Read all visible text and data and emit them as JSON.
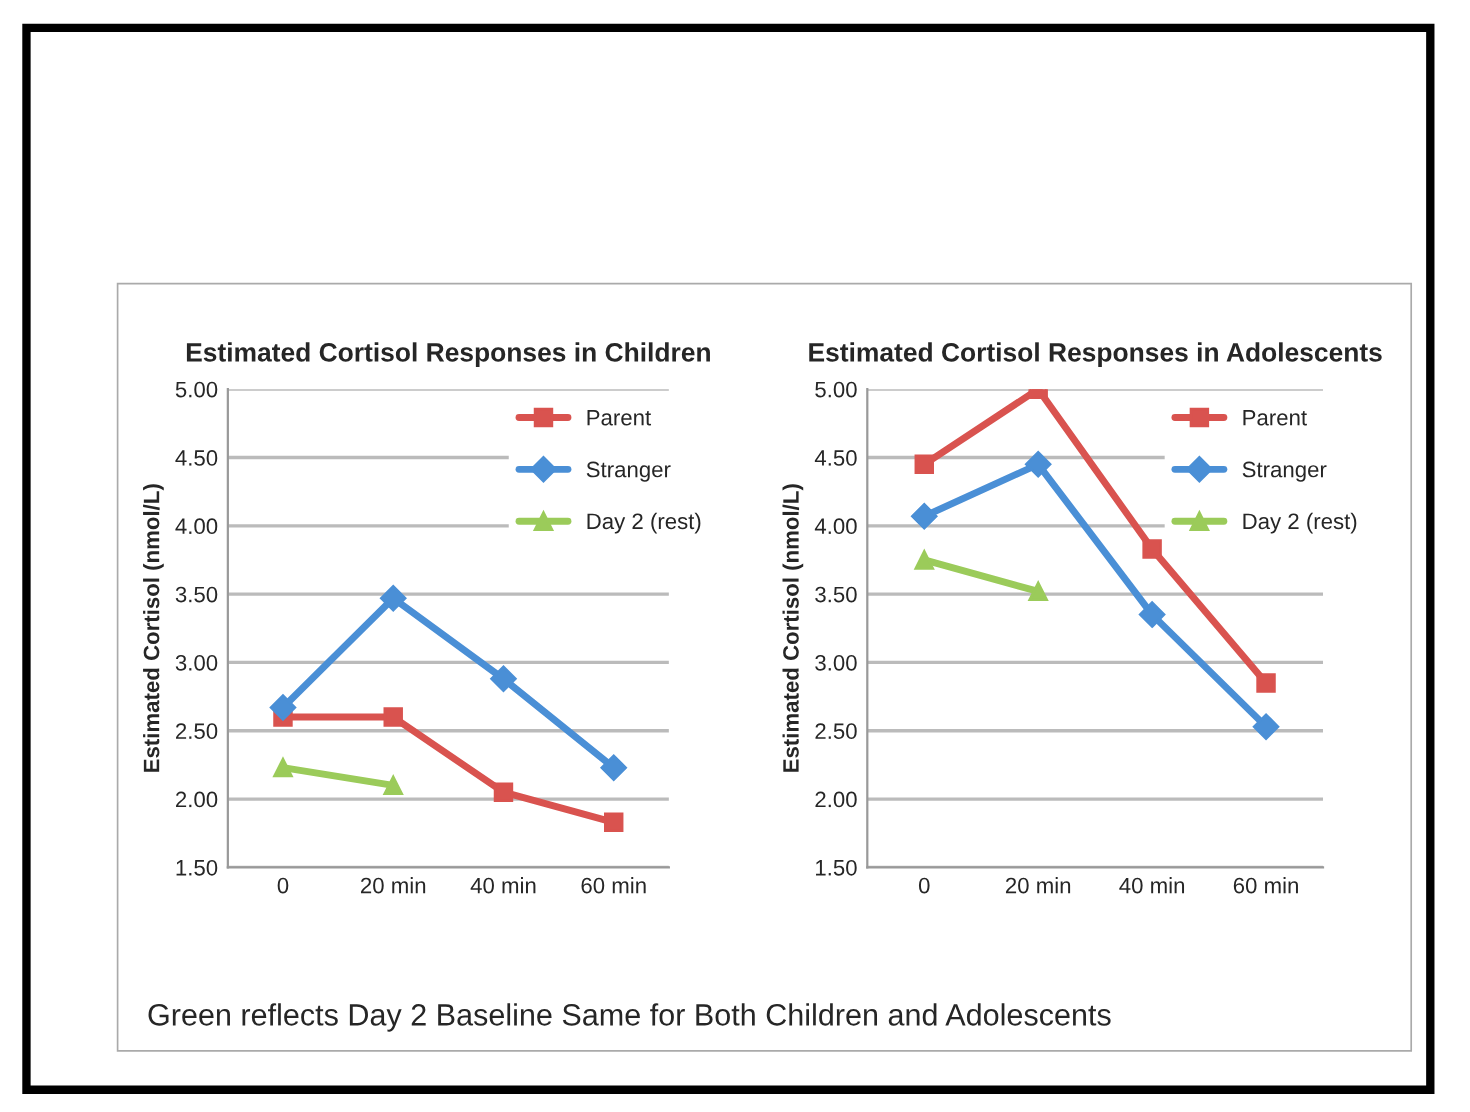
{
  "chart_data": [
    {
      "type": "line",
      "title": "Estimated Cortisol Responses in Children",
      "ylabel": "Estimated Cortisol (nmol/L)",
      "categories": [
        "0",
        "20 min",
        "40 min",
        "60 min"
      ],
      "series": [
        {
          "name": "Parent",
          "color": "#d9534f",
          "marker": "square",
          "values": [
            2.6,
            2.6,
            2.05,
            1.83
          ]
        },
        {
          "name": "Stranger",
          "color": "#4a8fd6",
          "marker": "diamond",
          "values": [
            2.67,
            3.47,
            2.88,
            2.23
          ]
        },
        {
          "name": "Day 2 (rest)",
          "color": "#9bcb5a",
          "marker": "triangle",
          "values": [
            2.23,
            2.1,
            null,
            null
          ]
        }
      ],
      "ylim": [
        1.5,
        5.0
      ],
      "yticks": [
        {
          "value": 1.5,
          "label": "1.50"
        },
        {
          "value": 2.0,
          "label": "2.00"
        },
        {
          "value": 2.5,
          "label": "2.50"
        },
        {
          "value": 3.0,
          "label": "3.00"
        },
        {
          "value": 3.5,
          "label": "3.50"
        },
        {
          "value": 4.0,
          "label": "4.00"
        },
        {
          "value": 4.5,
          "label": "4.50"
        },
        {
          "value": 5.0,
          "label": "5.00"
        }
      ],
      "grid": "y",
      "legend": "top right"
    },
    {
      "type": "line",
      "title": "Estimated Cortisol Responses in Adolescents",
      "ylabel": "Estimated Cortisol (nmol/L)",
      "categories": [
        "0",
        "20 min",
        "40 min",
        "60 min"
      ],
      "series": [
        {
          "name": "Parent",
          "color": "#d9534f",
          "marker": "square",
          "values": [
            4.45,
            5.0,
            3.83,
            2.85
          ]
        },
        {
          "name": "Stranger",
          "color": "#4a8fd6",
          "marker": "diamond",
          "values": [
            4.07,
            4.45,
            3.35,
            2.53
          ]
        },
        {
          "name": "Day 2 (rest)",
          "color": "#9bcb5a",
          "marker": "triangle",
          "values": [
            3.75,
            3.52,
            null,
            null
          ]
        }
      ],
      "ylim": [
        1.5,
        5.0
      ],
      "yticks": [
        {
          "value": 1.5,
          "label": "1.50"
        },
        {
          "value": 2.0,
          "label": "2.00"
        },
        {
          "value": 2.5,
          "label": "2.50"
        },
        {
          "value": 3.0,
          "label": "3.00"
        },
        {
          "value": 3.5,
          "label": "3.50"
        },
        {
          "value": 4.0,
          "label": "4.00"
        },
        {
          "value": 4.5,
          "label": "4.50"
        },
        {
          "value": 5.0,
          "label": "5.00"
        }
      ],
      "grid": "y",
      "legend": "top right",
      "annotations": [
        "Green reflects Day 2 Baseline Same for Both Children and Adolescents"
      ]
    }
  ]
}
